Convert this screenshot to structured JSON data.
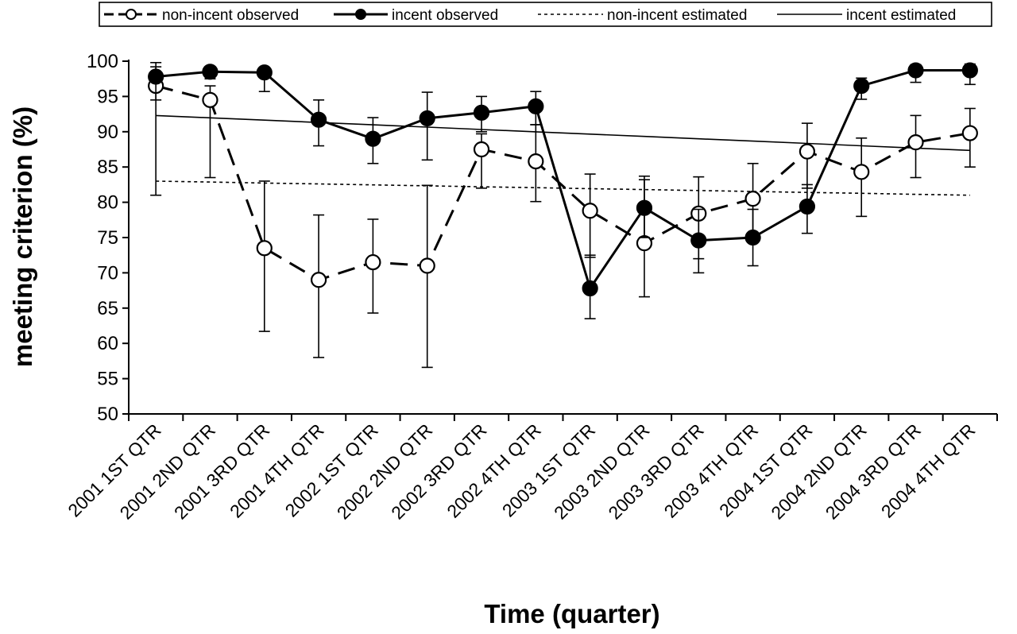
{
  "chart_data": {
    "type": "line",
    "title": "",
    "xlabel": "Time (quarter)",
    "ylabel": "meeting criterion (%)",
    "ylim": [
      50,
      100
    ],
    "yticks": [
      50,
      55,
      60,
      65,
      70,
      75,
      80,
      85,
      90,
      95,
      100
    ],
    "grid": false,
    "legend_position": "top",
    "categories": [
      "2001 1ST QTR",
      "2001 2ND QTR",
      "2001 3RD QTR",
      "2001 4TH QTR",
      "2002 1ST QTR",
      "2002 2ND QTR",
      "2002 3RD QTR",
      "2002 4TH QTR",
      "2003 1ST QTR",
      "2003 2ND QTR",
      "2003 3RD QTR",
      "2003 4TH QTR",
      "2004 1ST QTR",
      "2004 2ND QTR",
      "2004 3RD QTR",
      "2004 4TH QTR"
    ],
    "series": [
      {
        "name": "non-incent observed",
        "style": "dashed-open-marker",
        "color": "#000000",
        "values": [
          96.5,
          94.5,
          73.5,
          69.0,
          71.5,
          71.0,
          87.5,
          85.8,
          78.8,
          74.2,
          78.4,
          80.5,
          87.2,
          84.3,
          88.5,
          89.8
        ],
        "error_low": [
          81.0,
          83.5,
          61.7,
          58.0,
          64.3,
          56.6,
          82.0,
          80.1,
          72.2,
          66.6,
          72.0,
          75.5,
          82.0,
          78.0,
          83.5,
          85.0
        ],
        "error_high": [
          99.2,
          96.5,
          83.0,
          78.2,
          77.6,
          82.4,
          89.7,
          91.0,
          84.0,
          83.7,
          83.6,
          85.5,
          91.2,
          89.1,
          92.3,
          93.3
        ]
      },
      {
        "name": "incent observed",
        "style": "solid-filled-marker",
        "color": "#000000",
        "values": [
          97.8,
          98.5,
          98.4,
          91.7,
          89.0,
          91.9,
          92.7,
          93.6,
          67.8,
          79.2,
          74.6,
          75.0,
          79.4,
          96.5,
          98.7,
          98.7
        ],
        "error_low": [
          94.5,
          97.5,
          95.7,
          88.0,
          85.5,
          86.0,
          90.0,
          91.0,
          63.5,
          75.0,
          70.0,
          71.0,
          75.6,
          94.6,
          97.0,
          96.7
        ],
        "error_high": [
          99.8,
          99.2,
          99.1,
          94.5,
          92.0,
          95.6,
          95.0,
          95.7,
          72.5,
          83.2,
          79.0,
          79.0,
          82.5,
          97.6,
          99.5,
          99.6
        ]
      },
      {
        "name": "non-incent estimated",
        "style": "dotted-line",
        "color": "#000000",
        "values": [
          83.0,
          82.87,
          82.73,
          82.6,
          82.47,
          82.33,
          82.2,
          82.07,
          81.93,
          81.8,
          81.67,
          81.53,
          81.4,
          81.27,
          81.13,
          81.0
        ]
      },
      {
        "name": "incent estimated",
        "style": "thin-solid-line",
        "color": "#000000",
        "values": [
          92.3,
          91.97,
          91.64,
          91.31,
          90.98,
          90.65,
          90.32,
          89.99,
          89.66,
          89.33,
          89.0,
          88.67,
          88.34,
          88.01,
          87.68,
          87.35
        ]
      }
    ]
  }
}
